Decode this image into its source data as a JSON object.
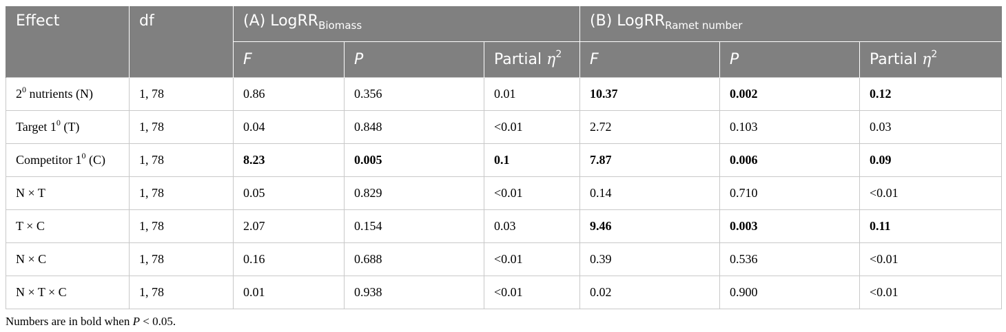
{
  "headers": {
    "effect": "Effect",
    "df": "df",
    "groupA_prefix": "(A) LogRR",
    "groupA_sub": "Biomass",
    "groupB_prefix": "(B) LogRR",
    "groupB_sub": "Ramet number",
    "F": "F",
    "P": "P",
    "partial": "Partial ",
    "eta": "η",
    "eta_exp": "2"
  },
  "rows": [
    {
      "effect_pre": "2",
      "effect_sup": "0",
      "effect_post": " nutrients (N)",
      "df": "1, 78",
      "a_f": "0.86",
      "a_p": "0.356",
      "a_e": "0.01",
      "b_f": "10.37",
      "b_p": "0.002",
      "b_e": "0.12"
    },
    {
      "effect_pre": "Target 1",
      "effect_sup": "0",
      "effect_post": " (T)",
      "df": "1, 78",
      "a_f": "0.04",
      "a_p": "0.848",
      "a_e": "<0.01",
      "b_f": "2.72",
      "b_p": "0.103",
      "b_e": "0.03"
    },
    {
      "effect_pre": "Competitor 1",
      "effect_sup": "0",
      "effect_post": " (C)",
      "df": "1, 78",
      "a_f": "8.23",
      "a_p": "0.005",
      "a_e": "0.1",
      "b_f": "7.87",
      "b_p": "0.006",
      "b_e": "0.09"
    },
    {
      "effect": "N × T",
      "df": "1, 78",
      "a_f": "0.05",
      "a_p": "0.829",
      "a_e": "<0.01",
      "b_f": "0.14",
      "b_p": "0.710",
      "b_e": "<0.01"
    },
    {
      "effect": "T × C",
      "df": "1, 78",
      "a_f": "2.07",
      "a_p": "0.154",
      "a_e": "0.03",
      "b_f": "9.46",
      "b_p": "0.003",
      "b_e": "0.11"
    },
    {
      "effect": "N × C",
      "df": "1, 78",
      "a_f": "0.16",
      "a_p": "0.688",
      "a_e": "<0.01",
      "b_f": "0.39",
      "b_p": "0.536",
      "b_e": "<0.01"
    },
    {
      "effect": "N × T × C",
      "df": "1, 78",
      "a_f": "0.01",
      "a_p": "0.938",
      "a_e": "<0.01",
      "b_f": "0.02",
      "b_p": "0.900",
      "b_e": "<0.01"
    }
  ],
  "footnote": {
    "pre": "Numbers are in bold when ",
    "p": "P",
    "post": " < 0.05."
  },
  "colors": {
    "header_bg": "#808080",
    "header_text": "#ffffff",
    "grid": "#c8c8c8"
  }
}
